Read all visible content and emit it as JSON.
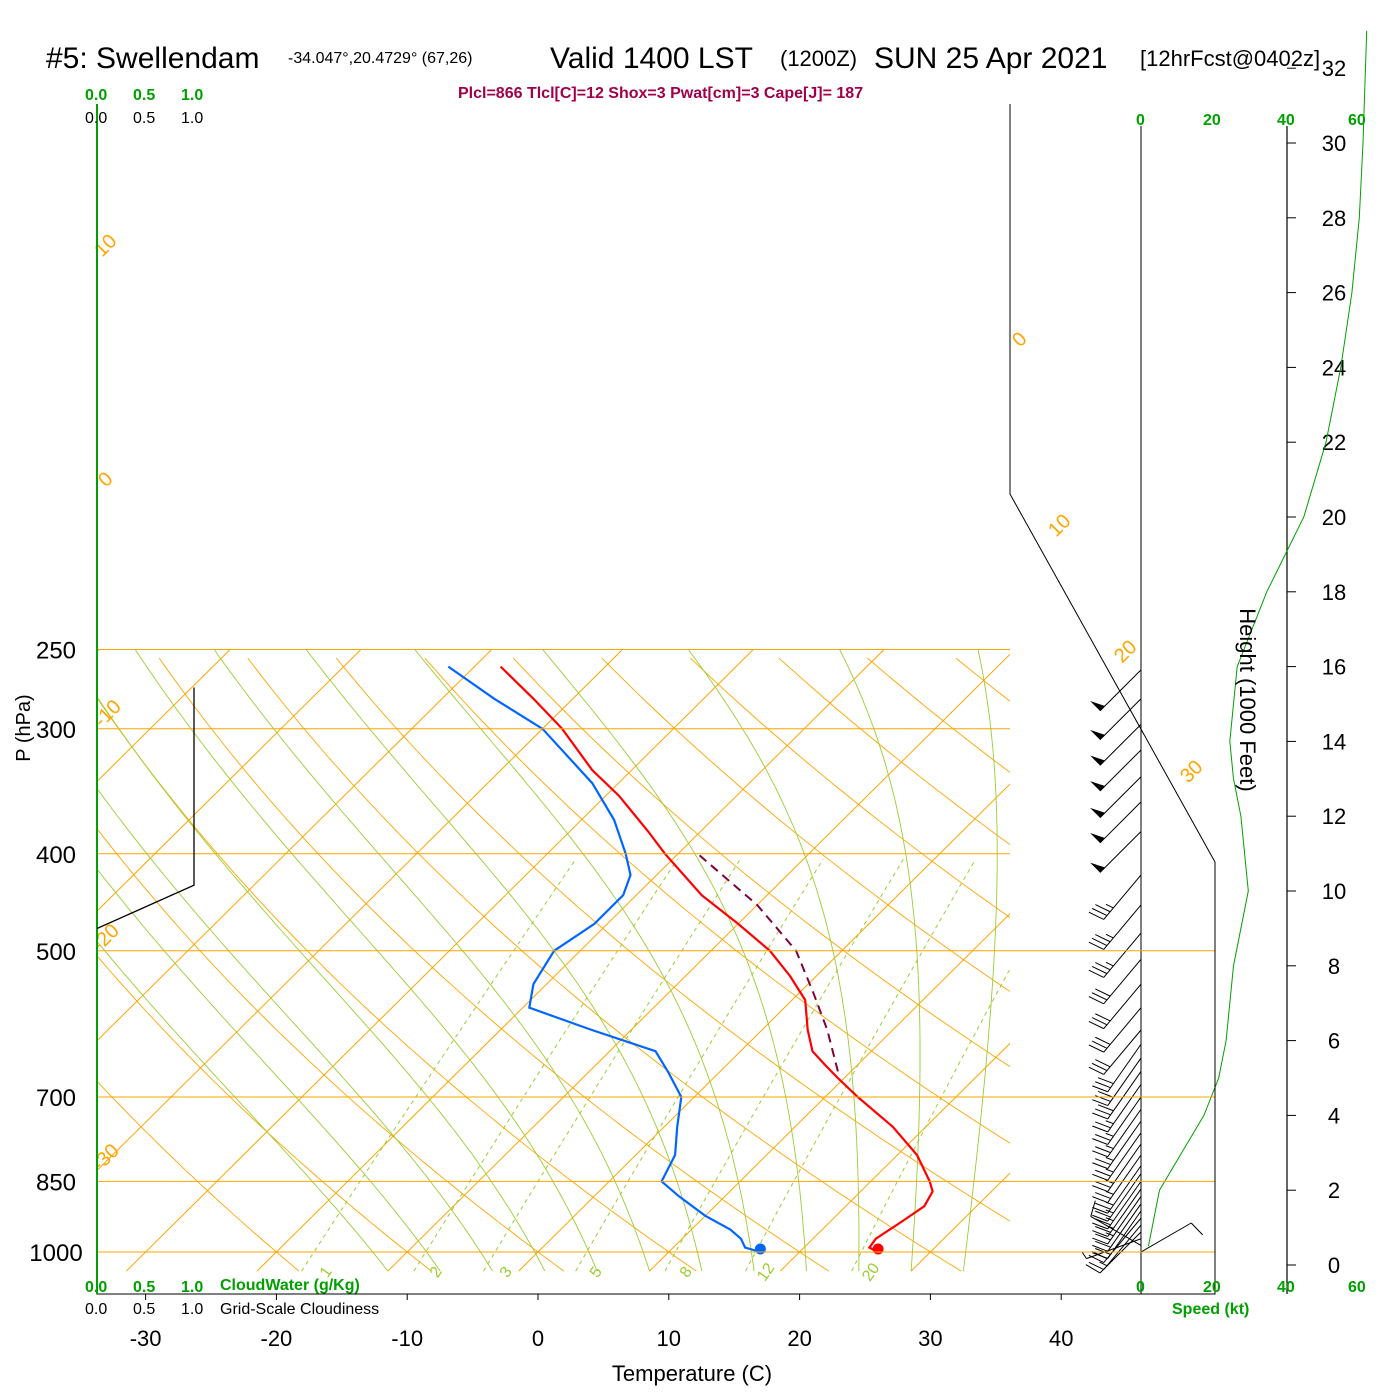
{
  "header": {
    "station": "#5: Swellendam",
    "coords": "-34.047°,20.4729° (67,26)",
    "valid": "Valid 1400 LST",
    "zulu": "(1200Z)",
    "date": "SUN 25 Apr 2021",
    "forecast": "[12hrFcst@0402z]",
    "indices": "Plcl=866 Tlcl[C]=12 Shox=3 Pwat[cm]=3 Cape[J]= 187"
  },
  "colors": {
    "temperature": "#ff0000",
    "dewpoint": "#0066ff",
    "parcel": "#800040",
    "isobar": "#ffa500",
    "dry_adiabat": "#9acd32",
    "mixing_ratio": "#9acd32",
    "green_text": "#00a000",
    "wind_speed": "#00a000",
    "indices_text": "#a0004a"
  },
  "top_scales": {
    "cloudwater": [
      "0.0",
      "0.5",
      "1.0"
    ],
    "cloudiness": [
      "0.0",
      "0.5",
      "1.0"
    ]
  },
  "bottom_scales": {
    "cloudwater": [
      "0.0",
      "0.5",
      "1.0"
    ],
    "cloudwater_label": "CloudWater (g/Kg)",
    "cloudiness": [
      "0.0",
      "0.5",
      "1.0"
    ],
    "cloudiness_label": "Grid-Scale Cloudiness"
  },
  "speed_scale": {
    "top_ticks": [
      "0",
      "20",
      "40",
      "60"
    ],
    "bottom_ticks": [
      "0",
      "20",
      "40",
      "60"
    ],
    "label": "Speed (kt)"
  },
  "isotherm_labels": [
    "10",
    "0",
    "-10",
    "-20",
    "-30",
    "0",
    "10",
    "20",
    "30"
  ],
  "mixing_ratio_labels": [
    "1",
    "2",
    "3",
    "5",
    "8",
    "12",
    "20"
  ],
  "chart_data": {
    "type": "skew-t",
    "title": "#5: Swellendam",
    "xlabel": "Temperature (C)",
    "ylabel": "P (hPa)",
    "y2label": "Height (1000 Feet)",
    "x_ticks": [
      -30,
      -20,
      -10,
      0,
      10,
      20,
      30,
      40
    ],
    "p_ticks": [
      250,
      300,
      400,
      500,
      700,
      850,
      1000
    ],
    "height_ticks": [
      0,
      2,
      4,
      6,
      8,
      10,
      12,
      14,
      16,
      18,
      20,
      22,
      24,
      26,
      28,
      30,
      32
    ],
    "temperature_profile": [
      {
        "p": 1000,
        "t": 26.0
      },
      {
        "p": 990,
        "t": 25.0
      },
      {
        "p": 970,
        "t": 24.8
      },
      {
        "p": 930,
        "t": 25.5
      },
      {
        "p": 900,
        "t": 26.0
      },
      {
        "p": 870,
        "t": 25.5
      },
      {
        "p": 850,
        "t": 24.5
      },
      {
        "p": 800,
        "t": 21.5
      },
      {
        "p": 750,
        "t": 17.5
      },
      {
        "p": 700,
        "t": 12.5
      },
      {
        "p": 670,
        "t": 9.5
      },
      {
        "p": 650,
        "t": 7.5
      },
      {
        "p": 630,
        "t": 5.5
      },
      {
        "p": 600,
        "t": 3.5
      },
      {
        "p": 560,
        "t": 1.0
      },
      {
        "p": 530,
        "t": -2.0
      },
      {
        "p": 500,
        "t": -5.5
      },
      {
        "p": 470,
        "t": -10.0
      },
      {
        "p": 440,
        "t": -15.0
      },
      {
        "p": 400,
        "t": -21.0
      },
      {
        "p": 380,
        "t": -24.0
      },
      {
        "p": 350,
        "t": -29.0
      },
      {
        "p": 330,
        "t": -33.0
      },
      {
        "p": 300,
        "t": -38.5
      },
      {
        "p": 280,
        "t": -43.0
      },
      {
        "p": 260,
        "t": -48.0
      }
    ],
    "dewpoint_profile": [
      {
        "p": 1000,
        "t": 17.0
      },
      {
        "p": 990,
        "t": 15.5
      },
      {
        "p": 970,
        "t": 14.5
      },
      {
        "p": 950,
        "t": 13.0
      },
      {
        "p": 920,
        "t": 10.0
      },
      {
        "p": 880,
        "t": 6.5
      },
      {
        "p": 850,
        "t": 4.0
      },
      {
        "p": 800,
        "t": 3.0
      },
      {
        "p": 750,
        "t": 1.0
      },
      {
        "p": 700,
        "t": -1.0
      },
      {
        "p": 660,
        "t": -4.0
      },
      {
        "p": 630,
        "t": -6.5
      },
      {
        "p": 600,
        "t": -13.0
      },
      {
        "p": 570,
        "t": -19.5
      },
      {
        "p": 540,
        "t": -21.0
      },
      {
        "p": 500,
        "t": -22.0
      },
      {
        "p": 470,
        "t": -21.0
      },
      {
        "p": 440,
        "t": -21.0
      },
      {
        "p": 420,
        "t": -22.0
      },
      {
        "p": 400,
        "t": -24.0
      },
      {
        "p": 370,
        "t": -27.5
      },
      {
        "p": 340,
        "t": -32.0
      },
      {
        "p": 300,
        "t": -40.0
      },
      {
        "p": 280,
        "t": -46.0
      },
      {
        "p": 260,
        "t": -52.0
      }
    ],
    "parcel_profile": [
      {
        "p": 660,
        "t": 9.0
      },
      {
        "p": 600,
        "t": 5.0
      },
      {
        "p": 550,
        "t": 1.0
      },
      {
        "p": 500,
        "t": -3.5
      },
      {
        "p": 450,
        "t": -10.0
      },
      {
        "p": 400,
        "t": -18.5
      }
    ],
    "surface_temperature": 26.0,
    "surface_dewpoint": 17.0,
    "isobar_levels": [
      250,
      300,
      400,
      500,
      700,
      850,
      1000
    ],
    "isotherms": [
      -80,
      -70,
      -60,
      -50,
      -40,
      -30,
      -20,
      -10,
      0,
      10,
      20,
      30,
      40
    ],
    "mixing_ratios": [
      1,
      2,
      3,
      5,
      8,
      12,
      20
    ],
    "wind_profile": [
      {
        "p": 1000,
        "dir": 60,
        "kt": 10
      },
      {
        "p": 985,
        "dir": 300,
        "kt": 10
      },
      {
        "p": 970,
        "dir": 250,
        "kt": 8
      },
      {
        "p": 955,
        "dir": 225,
        "kt": 10
      },
      {
        "p": 940,
        "dir": 220,
        "kt": 15
      },
      {
        "p": 925,
        "dir": 220,
        "kt": 20
      },
      {
        "p": 910,
        "dir": 215,
        "kt": 20
      },
      {
        "p": 895,
        "dir": 215,
        "kt": 20
      },
      {
        "p": 880,
        "dir": 215,
        "kt": 25
      },
      {
        "p": 865,
        "dir": 215,
        "kt": 25
      },
      {
        "p": 850,
        "dir": 215,
        "kt": 25
      },
      {
        "p": 835,
        "dir": 215,
        "kt": 25
      },
      {
        "p": 820,
        "dir": 215,
        "kt": 25
      },
      {
        "p": 800,
        "dir": 215,
        "kt": 25
      },
      {
        "p": 780,
        "dir": 215,
        "kt": 25
      },
      {
        "p": 760,
        "dir": 215,
        "kt": 25
      },
      {
        "p": 740,
        "dir": 215,
        "kt": 25
      },
      {
        "p": 720,
        "dir": 215,
        "kt": 25
      },
      {
        "p": 700,
        "dir": 215,
        "kt": 25
      },
      {
        "p": 680,
        "dir": 215,
        "kt": 25
      },
      {
        "p": 660,
        "dir": 215,
        "kt": 30
      },
      {
        "p": 640,
        "dir": 215,
        "kt": 30
      },
      {
        "p": 620,
        "dir": 215,
        "kt": 30
      },
      {
        "p": 600,
        "dir": 220,
        "kt": 30
      },
      {
        "p": 570,
        "dir": 220,
        "kt": 30
      },
      {
        "p": 540,
        "dir": 220,
        "kt": 30
      },
      {
        "p": 510,
        "dir": 220,
        "kt": 30
      },
      {
        "p": 480,
        "dir": 220,
        "kt": 35
      },
      {
        "p": 450,
        "dir": 220,
        "kt": 35
      },
      {
        "p": 420,
        "dir": 220,
        "kt": 35
      },
      {
        "p": 380,
        "dir": 225,
        "kt": 50
      },
      {
        "p": 355,
        "dir": 225,
        "kt": 50
      },
      {
        "p": 335,
        "dir": 225,
        "kt": 50
      },
      {
        "p": 315,
        "dir": 225,
        "kt": 50
      },
      {
        "p": 297,
        "dir": 225,
        "kt": 50
      },
      {
        "p": 280,
        "dir": 225,
        "kt": 50
      },
      {
        "p": 262,
        "dir": 225,
        "kt": 50
      }
    ],
    "wind_speed_profile": [
      {
        "h": 0.5,
        "kt": 2
      },
      {
        "h": 1.0,
        "kt": 3
      },
      {
        "h": 2.0,
        "kt": 5
      },
      {
        "h": 3.0,
        "kt": 11
      },
      {
        "h": 4.0,
        "kt": 17
      },
      {
        "h": 5.0,
        "kt": 21
      },
      {
        "h": 6.0,
        "kt": 23
      },
      {
        "h": 7.0,
        "kt": 24
      },
      {
        "h": 8.0,
        "kt": 25
      },
      {
        "h": 9.0,
        "kt": 27
      },
      {
        "h": 10.0,
        "kt": 29
      },
      {
        "h": 11.0,
        "kt": 28
      },
      {
        "h": 12.0,
        "kt": 27
      },
      {
        "h": 13.0,
        "kt": 25
      },
      {
        "h": 14.0,
        "kt": 24
      },
      {
        "h": 16.0,
        "kt": 26
      },
      {
        "h": 17.0,
        "kt": 30
      },
      {
        "h": 18.0,
        "kt": 34
      },
      {
        "h": 19.0,
        "kt": 39
      },
      {
        "h": 20.0,
        "kt": 44
      },
      {
        "h": 22.0,
        "kt": 50
      },
      {
        "h": 24.0,
        "kt": 54
      },
      {
        "h": 26.0,
        "kt": 57
      },
      {
        "h": 28.0,
        "kt": 59
      },
      {
        "h": 30.0,
        "kt": 60
      },
      {
        "h": 33.0,
        "kt": 61
      }
    ],
    "cloudiness_profile": [
      {
        "p": 250,
        "v": 1.0
      },
      {
        "p": 430,
        "v": 1.0
      },
      {
        "p": 475,
        "v": 0.0
      }
    ]
  }
}
